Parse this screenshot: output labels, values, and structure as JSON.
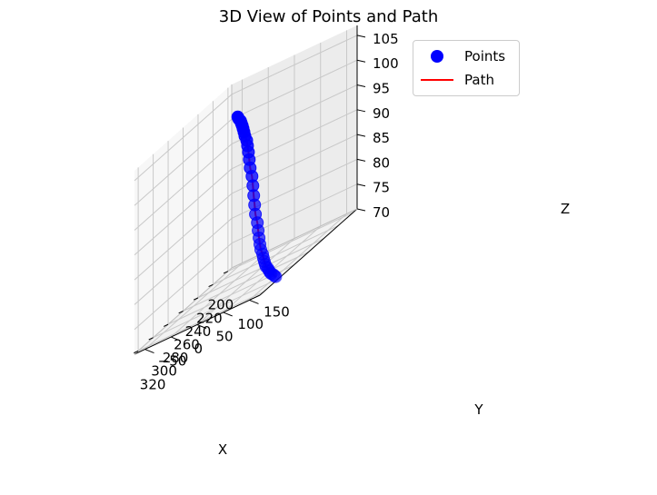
{
  "chart_data": {
    "type": "scatter",
    "title": "3D View of Points and Path",
    "xlabel": "X",
    "ylabel": "Y",
    "zlabel": "Z",
    "x_ticks": [
      "200",
      "220",
      "240",
      "260",
      "280",
      "300",
      "320"
    ],
    "y_ticks": [
      "−50",
      "0",
      "50",
      "100",
      "150"
    ],
    "z_ticks": [
      "70",
      "75",
      "80",
      "85",
      "90",
      "95",
      "100",
      "105"
    ],
    "legend": [
      {
        "label": "Points",
        "marker": "circle",
        "color": "#0000ff"
      },
      {
        "label": "Path",
        "marker": "line",
        "color": "#ff0000"
      }
    ],
    "legend_position": "top-right",
    "grid": true,
    "series": [
      {
        "name": "Points",
        "color": "#0000ff",
        "points": [
          {
            "x": 203,
            "y": 166,
            "z": 100.0
          },
          {
            "x": 206,
            "y": 161,
            "z": 99.7
          },
          {
            "x": 210,
            "y": 156,
            "z": 99.3
          },
          {
            "x": 213,
            "y": 151,
            "z": 98.9
          },
          {
            "x": 216,
            "y": 146,
            "z": 98.5
          },
          {
            "x": 219,
            "y": 141,
            "z": 98.0
          },
          {
            "x": 222,
            "y": 136,
            "z": 97.4
          },
          {
            "x": 225,
            "y": 131,
            "z": 96.7
          },
          {
            "x": 229,
            "y": 126,
            "z": 95.8
          },
          {
            "x": 232,
            "y": 121,
            "z": 94.8
          },
          {
            "x": 235,
            "y": 116,
            "z": 93.6
          },
          {
            "x": 238,
            "y": 111,
            "z": 92.2
          },
          {
            "x": 241,
            "y": 106,
            "z": 90.6
          },
          {
            "x": 245,
            "y": 101,
            "z": 88.9
          },
          {
            "x": 248,
            "y": 96,
            "z": 87.1
          },
          {
            "x": 251,
            "y": 91,
            "z": 85.2
          },
          {
            "x": 254,
            "y": 86,
            "z": 83.4
          },
          {
            "x": 257,
            "y": 81,
            "z": 81.6
          },
          {
            "x": 261,
            "y": 76,
            "z": 79.9
          },
          {
            "x": 264,
            "y": 71,
            "z": 78.4
          },
          {
            "x": 267,
            "y": 66,
            "z": 77.0
          },
          {
            "x": 270,
            "y": 61,
            "z": 75.8
          },
          {
            "x": 273,
            "y": 56,
            "z": 74.8
          },
          {
            "x": 277,
            "y": 51,
            "z": 73.9
          },
          {
            "x": 280,
            "y": 46,
            "z": 73.2
          },
          {
            "x": 283,
            "y": 41,
            "z": 72.6
          },
          {
            "x": 286,
            "y": 36,
            "z": 72.1
          },
          {
            "x": 289,
            "y": 31,
            "z": 71.7
          },
          {
            "x": 293,
            "y": 26,
            "z": 71.4
          },
          {
            "x": 296,
            "y": 21,
            "z": 71.1
          },
          {
            "x": 299,
            "y": 16,
            "z": 70.9
          },
          {
            "x": 302,
            "y": 11,
            "z": 70.7
          },
          {
            "x": 305,
            "y": 6,
            "z": 70.6
          },
          {
            "x": 309,
            "y": 1,
            "z": 70.5
          },
          {
            "x": 312,
            "y": -4,
            "z": 70.4
          },
          {
            "x": 315,
            "y": -9,
            "z": 70.3
          },
          {
            "x": 318,
            "y": -14,
            "z": 70.3
          }
        ]
      },
      {
        "name": "Path",
        "color": "#ff0000",
        "same_as": "Points"
      }
    ]
  }
}
